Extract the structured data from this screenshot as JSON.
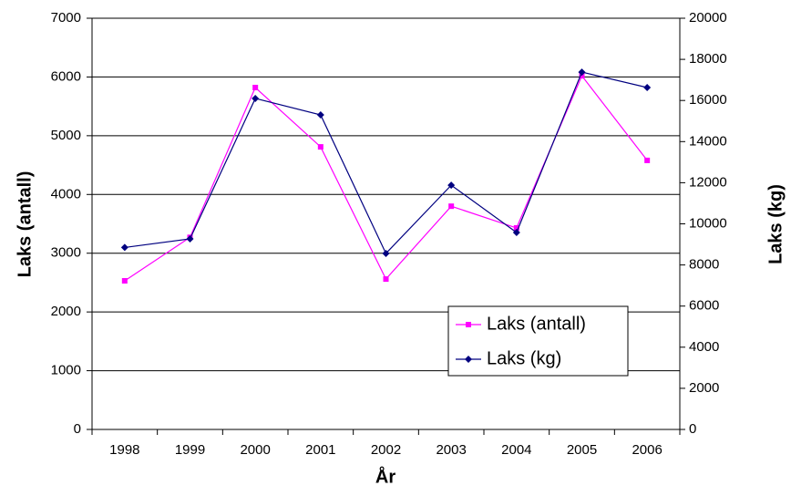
{
  "chart_data": {
    "type": "line",
    "x_label": "År",
    "y_label": "Laks (antall)",
    "y2_label": "Laks (kg)",
    "categories": [
      "1998",
      "1999",
      "2000",
      "2001",
      "2002",
      "2003",
      "2004",
      "2005",
      "2006"
    ],
    "series": [
      {
        "name": "Laks (antall)",
        "color": "#ff00ff",
        "marker": "square",
        "values": [
          2530,
          3270,
          5820,
          4810,
          2560,
          3800,
          3430,
          6020,
          4580
        ]
      },
      {
        "name": "Laks (kg)",
        "color": "#000080",
        "marker": "diamond",
        "axis": "y2",
        "values": [
          8850,
          9270,
          16100,
          15300,
          8560,
          11880,
          9580,
          17380,
          16630
        ]
      }
    ],
    "ylim": [
      0,
      7000
    ],
    "yticks": [
      0,
      1000,
      2000,
      3000,
      4000,
      5000,
      6000,
      7000
    ],
    "y2lim": [
      0,
      20000
    ],
    "y2ticks": [
      0,
      2000,
      4000,
      6000,
      8000,
      10000,
      12000,
      14000,
      16000,
      18000,
      20000
    ],
    "grid": true,
    "legend": "lower right"
  }
}
